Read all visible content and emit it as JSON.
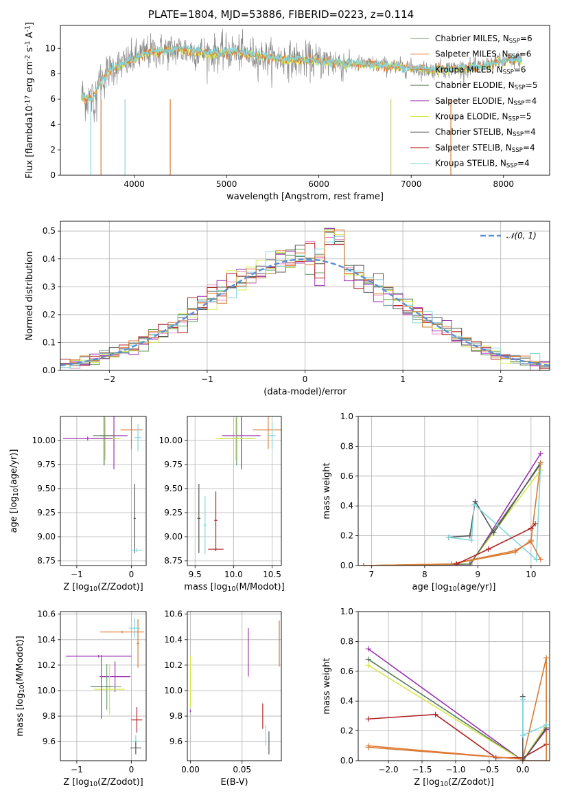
{
  "figure": {
    "title": "PLATE=1804, MJD=53886, FIBERID=0223, z=0.114"
  },
  "series_colors": {
    "Chabrier MILES": "#6a9e6a",
    "Salpeter MILES": "#e07b39",
    "Kroupa MILES": "#d77a2e",
    "Chabrier ELODIE": "#5a7a5a",
    "Salpeter ELODIE": "#9a2fb0",
    "Kroupa ELODIE": "#d4e84a",
    "Chabrier STELIB": "#555555",
    "Salpeter STELIB": "#b22020",
    "Kroupa STELIB": "#7fd6de"
  },
  "chart_data": [
    {
      "id": "spectrum",
      "type": "line",
      "xlabel": "wavelength [Angstrom, rest frame]",
      "ylabel": "Flux [f$_\\lambda$10$^{-17}$ erg cm$^{-2}$ s$^{-1}$ A$^{-1}$]",
      "xlim": [
        3200,
        8500
      ],
      "ylim": [
        0,
        11.8
      ],
      "xticks": [
        4000,
        5000,
        6000,
        7000,
        8000
      ],
      "yticks": [
        0,
        2,
        4,
        6,
        8,
        10
      ],
      "legend_position": "top-right",
      "legend": [
        {
          "name": "Chabrier MILES",
          "nssp": "6"
        },
        {
          "name": "Salpeter MILES",
          "nssp": "6"
        },
        {
          "name": "Kroupa MILES",
          "nssp": "6"
        },
        {
          "name": "Chabrier ELODIE",
          "nssp": "5"
        },
        {
          "name": "Salpeter ELODIE",
          "nssp": "4"
        },
        {
          "name": "Kroupa ELODIE",
          "nssp": "5"
        },
        {
          "name": "Chabrier STELIB",
          "nssp": "4"
        },
        {
          "name": "Salpeter STELIB",
          "nssp": "4"
        },
        {
          "name": "Kroupa STELIB",
          "nssp": "4"
        }
      ],
      "data_trend": {
        "x": [
          3430,
          3550,
          3650,
          3750,
          3850,
          3950,
          4100,
          4300,
          4500,
          4800,
          5100,
          5400,
          5700,
          6000,
          6300,
          6600,
          6900,
          7200,
          7500,
          7800,
          8000,
          8200
        ],
        "y": [
          6.2,
          6.0,
          7.6,
          8.4,
          8.7,
          9.0,
          9.6,
          9.8,
          9.9,
          9.6,
          9.7,
          9.3,
          9.1,
          9.0,
          8.8,
          8.7,
          8.5,
          8.3,
          8.4,
          8.6,
          9.0,
          9.1
        ]
      },
      "dropouts": [
        3530,
        3640,
        3900,
        4390,
        6780,
        7430
      ]
    },
    {
      "id": "residuals",
      "type": "line",
      "xlabel": "(data-model)/error",
      "ylabel": "Normed distribution",
      "xlim": [
        -2.5,
        2.5
      ],
      "ylim": [
        0,
        0.535
      ],
      "xticks": [
        -2,
        -1,
        0,
        1,
        2
      ],
      "yticks": [
        0.0,
        0.1,
        0.2,
        0.3,
        0.4,
        0.5
      ],
      "legend": [
        {
          "name": "𝒩(0, 1)"
        }
      ],
      "legend_position": "top-right",
      "normal_curve": {
        "mean": 0,
        "sigma": 1
      }
    },
    {
      "id": "age-vs-Z",
      "type": "scatter",
      "xlabel": "Z [log$_{10}$($Z/Z_\\odot$)]",
      "ylabel": "age  [log$_{10}$($age/yr$)]",
      "xlim": [
        -1.3,
        0.27
      ],
      "ylim": [
        8.7,
        10.25
      ],
      "xticks": [
        -1,
        0
      ],
      "yticks": [
        8.75,
        9.0,
        9.25,
        9.5,
        9.75,
        10.0
      ],
      "points": [
        {
          "s": "Salpeter MILES",
          "x": 0.0,
          "y": 10.11,
          "xe": 0.2,
          "ye": 0.2
        },
        {
          "s": "Chabrier MILES",
          "x": -0.5,
          "y": 10.02,
          "xe": 0.22,
          "ye": 0.28
        },
        {
          "s": "Salpeter ELODIE",
          "x": -0.32,
          "y": 10.05,
          "xe": 0.25,
          "ye": 0.35
        },
        {
          "s": "Kroupa ELODIE",
          "x": -0.48,
          "y": 10.02,
          "xe": 0.28,
          "ye": 0.22
        },
        {
          "s": "Chabrier ELODIE",
          "x": -0.5,
          "y": 10.05,
          "xe": 0.2,
          "ye": 0.3
        },
        {
          "s": "Kroupa STELIB",
          "x": 0.12,
          "y": 10.03,
          "xe": 0.06,
          "ye": 0.14
        },
        {
          "s": "Chabrier STELIB",
          "x": 0.06,
          "y": 9.19,
          "xe": 0.02,
          "ye": 0.36
        },
        {
          "s": "Kroupa STELIB",
          "x": 0.1,
          "y": 8.86,
          "xe": 0.1,
          "ye": 0.02
        },
        {
          "s": "Salpeter ELODIE",
          "x": -0.8,
          "y": 10.02,
          "xe": 0.45,
          "ye": 0.02
        }
      ]
    },
    {
      "id": "age-vs-mass",
      "type": "scatter",
      "xlabel": "mass [log$_{10}$($M/M_\\odot$)]",
      "ylabel": "",
      "xlim": [
        9.4,
        10.62
      ],
      "ylim": [
        8.7,
        10.25
      ],
      "xticks": [
        9.5,
        10.0,
        10.5
      ],
      "yticks": [
        8.75,
        9.0,
        9.25,
        9.5,
        9.75,
        10.0
      ],
      "points": [
        {
          "s": "Salpeter MILES",
          "x": 10.45,
          "y": 10.11,
          "xe": 0.2,
          "ye": 0.2
        },
        {
          "s": "Chabrier MILES",
          "x": 10.04,
          "y": 10.02,
          "xe": 0.22,
          "ye": 0.28
        },
        {
          "s": "Salpeter ELODIE",
          "x": 10.1,
          "y": 10.05,
          "xe": 0.25,
          "ye": 0.35
        },
        {
          "s": "Kroupa ELODIE",
          "x": 10.03,
          "y": 10.02,
          "xe": 0.26,
          "ye": 0.22
        },
        {
          "s": "Kroupa STELIB",
          "x": 10.5,
          "y": 10.05,
          "xe": 0.05,
          "ye": 0.14
        },
        {
          "s": "Chabrier STELIB",
          "x": 9.55,
          "y": 9.19,
          "xe": 0.02,
          "ye": 0.36
        },
        {
          "s": "Kroupa STELIB",
          "x": 9.63,
          "y": 9.12,
          "xe": 0.02,
          "ye": 0.3
        },
        {
          "s": "Salpeter STELIB",
          "x": 9.77,
          "y": 9.17,
          "xe": 0.02,
          "ye": 0.3
        },
        {
          "s": "Salpeter STELIB",
          "x": 9.77,
          "y": 8.87,
          "xe": 0.1,
          "ye": 0.02
        }
      ]
    },
    {
      "id": "weight-vs-age",
      "type": "line",
      "xlabel": "age  [log$_{10}$($age/yr$)]",
      "ylabel": "mass weight",
      "xlim": [
        6.75,
        10.35
      ],
      "ylim": [
        0,
        1.0
      ],
      "xticks": [
        7,
        8,
        9,
        10
      ],
      "yticks": [
        0.0,
        0.2,
        0.4,
        0.6,
        0.8,
        1.0
      ],
      "series": [
        {
          "name": "Salpeter ELODIE",
          "x": [
            6.85,
            8.85,
            10.18
          ],
          "y": [
            0.0,
            0.0,
            0.75
          ]
        },
        {
          "name": "Kroupa ELODIE",
          "x": [
            6.85,
            8.85,
            10.18
          ],
          "y": [
            0.0,
            0.01,
            0.64
          ]
        },
        {
          "name": "Chabrier ELODIE",
          "x": [
            6.85,
            8.85,
            10.18
          ],
          "y": [
            0.0,
            0.01,
            0.68
          ]
        },
        {
          "name": "Chabrier STELIB",
          "x": [
            8.45,
            8.85,
            8.95,
            9.3,
            10.18
          ],
          "y": [
            0.19,
            0.2,
            0.43,
            0.22,
            0.69
          ]
        },
        {
          "name": "Kroupa STELIB",
          "x": [
            8.45,
            8.88,
            8.93,
            10.1,
            10.18
          ],
          "y": [
            0.19,
            0.17,
            0.41,
            0.04,
            0.68
          ]
        },
        {
          "name": "Salpeter MILES",
          "x": [
            6.85,
            8.5,
            9.7,
            10.0,
            10.18
          ],
          "y": [
            0.0,
            0.01,
            0.1,
            0.16,
            0.04
          ]
        },
        {
          "name": "Kroupa MILES",
          "x": [
            6.85,
            8.5,
            9.7,
            10.0,
            10.18
          ],
          "y": [
            0.0,
            0.01,
            0.09,
            0.17,
            0.69
          ]
        },
        {
          "name": "Salpeter STELIB",
          "x": [
            8.6,
            9.2,
            10.0,
            10.08
          ],
          "y": [
            0.01,
            0.11,
            0.25,
            0.28
          ]
        }
      ]
    },
    {
      "id": "mass-vs-Z",
      "type": "scatter",
      "xlabel": "Z [log$_{10}$($Z/Z_\\odot$)]",
      "ylabel": "mass [log$_{10}$($M/M_\\odot$)]",
      "xlim": [
        -1.3,
        0.27
      ],
      "ylim": [
        9.45,
        10.62
      ],
      "xticks": [
        -1,
        0
      ],
      "yticks": [
        9.6,
        9.8,
        10.0,
        10.2,
        10.4,
        10.6
      ],
      "points": [
        {
          "s": "Salpeter MILES",
          "x": -0.17,
          "y": 10.46,
          "xe": 0.4,
          "ye": 0.01
        },
        {
          "s": "Kroupa MILES",
          "x": 0.12,
          "y": 10.37,
          "xe": 0.02,
          "ye": 0.19
        },
        {
          "s": "Kroupa STELIB",
          "x": 0.06,
          "y": 10.49,
          "xe": 0.1,
          "ye": 0.08
        },
        {
          "s": "Salpeter ELODIE",
          "x": -0.3,
          "y": 10.11,
          "xe": 0.28,
          "ye": 0.12
        },
        {
          "s": "Chabrier MILES",
          "x": -0.45,
          "y": 10.03,
          "xe": 0.27,
          "ye": 0.18
        },
        {
          "s": "Kroupa ELODIE",
          "x": -0.4,
          "y": 10.01,
          "xe": 0.28,
          "ye": 0.2
        },
        {
          "s": "Chabrier ELODIE",
          "x": -0.55,
          "y": 10.03,
          "xe": 0.2,
          "ye": 0.25
        },
        {
          "s": "Salpeter STELIB",
          "x": 0.1,
          "y": 9.77,
          "xe": 0.1,
          "ye": 0.1
        },
        {
          "s": "Kroupa STELIB",
          "x": 0.08,
          "y": 9.6,
          "xe": 0.06,
          "ye": 0.05
        },
        {
          "s": "Chabrier STELIB",
          "x": 0.08,
          "y": 9.55,
          "xe": 0.1,
          "ye": 0.05
        },
        {
          "s": "Salpeter ELODIE",
          "x": -0.6,
          "y": 10.27,
          "xe": 0.6,
          "ye": 0.01
        }
      ]
    },
    {
      "id": "mass-vs-ebv",
      "type": "scatter",
      "xlabel": "E(B-V)",
      "ylabel": "",
      "xlim": [
        -0.003,
        0.088
      ],
      "ylim": [
        9.45,
        10.62
      ],
      "xticks": [
        0.0,
        0.05
      ],
      "yticks": [
        9.6,
        9.8,
        10.0,
        10.2,
        10.4,
        10.6
      ],
      "points": [
        {
          "s": "Kroupa ELODIE",
          "x": 0.0,
          "y": 10.07,
          "xe": 0,
          "ye": 0.2
        },
        {
          "s": "Salpeter ELODIE",
          "x": 0.0,
          "y": 9.84,
          "xe": 0,
          "ye": 0.01
        },
        {
          "s": "Salpeter ELODIE",
          "x": 0.056,
          "y": 10.3,
          "xe": 0,
          "ye": 0.19
        },
        {
          "s": "Salpeter STELIB",
          "x": 0.07,
          "y": 9.8,
          "xe": 0,
          "ye": 0.1
        },
        {
          "s": "Kroupa STELIB",
          "x": 0.073,
          "y": 9.65,
          "xe": 0,
          "ye": 0.08
        },
        {
          "s": "Chabrier STELIB",
          "x": 0.076,
          "y": 9.59,
          "xe": 0,
          "ye": 0.09
        },
        {
          "s": "Kroupa MILES",
          "x": 0.086,
          "y": 10.37,
          "xe": 0,
          "ye": 0.18
        }
      ]
    },
    {
      "id": "weight-vs-Z",
      "type": "line",
      "xlabel": "Z [log$_{10}$($Z/Z_\\odot$)]",
      "ylabel": "mass weight",
      "xlim": [
        -2.45,
        0.4
      ],
      "ylim": [
        0,
        1.0
      ],
      "xticks": [
        -2.0,
        -1.5,
        -1.0,
        -0.5,
        0.0
      ],
      "yticks": [
        0.0,
        0.2,
        0.4,
        0.6,
        0.8,
        1.0
      ],
      "series": [
        {
          "name": "Salpeter ELODIE",
          "x": [
            -2.3,
            0.0,
            0.35
          ],
          "y": [
            0.75,
            0.0,
            0.21
          ]
        },
        {
          "name": "Chabrier ELODIE",
          "x": [
            -2.3,
            0.0,
            0.35
          ],
          "y": [
            0.68,
            0.0,
            0.22
          ]
        },
        {
          "name": "Kroupa ELODIE",
          "x": [
            -2.3,
            0.0,
            0.35
          ],
          "y": [
            0.64,
            0.0,
            0.24
          ]
        },
        {
          "name": "Salpeter STELIB",
          "x": [
            -2.3,
            -1.3,
            -0.4,
            0.0,
            0.35
          ],
          "y": [
            0.28,
            0.31,
            0.02,
            0.02,
            0.11
          ]
        },
        {
          "name": "Kroupa MILES",
          "x": [
            -2.3,
            0.0,
            0.35,
            0.35
          ],
          "y": [
            0.09,
            0.01,
            0.69,
            0.0
          ]
        },
        {
          "name": "Salpeter MILES",
          "x": [
            -2.3,
            0.0,
            0.0,
            0.35
          ],
          "y": [
            0.1,
            0.01,
            0.0,
            0.0
          ]
        },
        {
          "name": "Chabrier STELIB",
          "x": [
            0.0,
            0.0,
            0.35
          ],
          "y": [
            0.43,
            0.0,
            0.22
          ]
        },
        {
          "name": "Kroupa STELIB",
          "x": [
            0.0,
            0.0,
            0.35
          ],
          "y": [
            0.41,
            0.17,
            0.24
          ]
        }
      ]
    }
  ]
}
